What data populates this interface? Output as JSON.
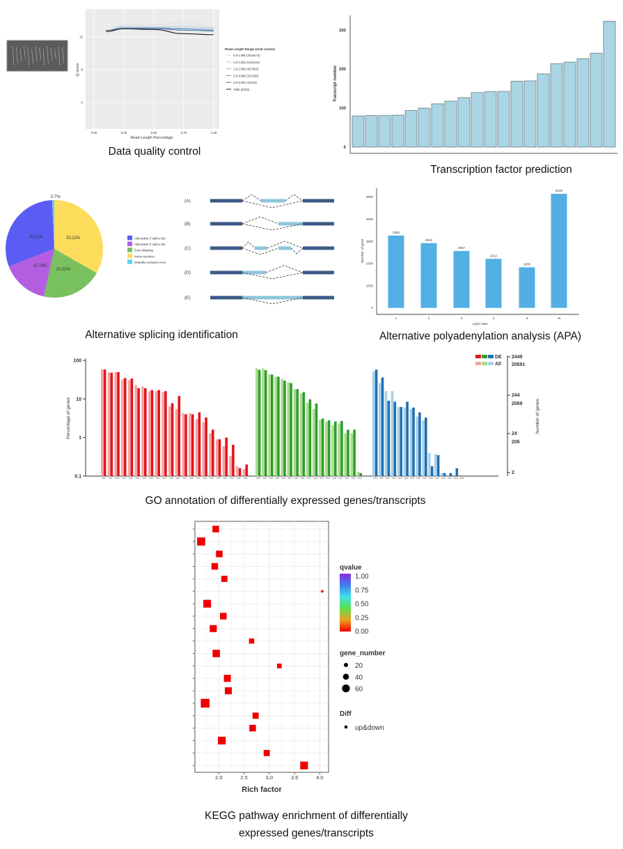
{
  "captions": {
    "qc": "Data quality control",
    "tf": "Transcription factor prediction",
    "as": "Alternative splicing identification",
    "apa": "Alternative polyadenylation analysis (APA)",
    "go": "GO annotation of differentially expressed genes/transcripts",
    "kegg_line1": "KEGG pathway enrichment of differentially",
    "kegg_line2": "expressed genes/transcripts"
  },
  "splicing_diagram": {
    "labels": [
      "(A)",
      "(B)",
      "(C)",
      "(D)",
      "(E)"
    ],
    "colors": {
      "constitutive_exon": "#3b5a86",
      "alternative_exon": "#8ec5dc"
    }
  },
  "chart_data": [
    {
      "id": "qc",
      "type": "line",
      "xlabel": "Read Length Percentage",
      "ylabel": "Q score",
      "xticks": [
        "0.00",
        "0.25",
        "0.50",
        "0.75",
        "1.00"
      ],
      "yticks": [
        "12",
        "9",
        "6"
      ],
      "xlim": [
        -0.05,
        1.05
      ],
      "ylim": [
        3.5,
        14.5
      ],
      "grid": true,
      "legend_title": "Read Length Range (read counts)",
      "legend_position": "right",
      "x": [
        0.1,
        0.25,
        0.5,
        0.75,
        1.0
      ],
      "series": [
        {
          "name": "0.5-1.0kb (2516473)",
          "color": "#d4dde6",
          "values": [
            12.6,
            13.1,
            13.1,
            13.35,
            12.9
          ]
        },
        {
          "name": "1.0-1.5kb (1130114)",
          "color": "#b8cadb",
          "values": [
            12.6,
            12.95,
            12.9,
            13.0,
            12.8
          ]
        },
        {
          "name": "1.5-2.0kb (457963)",
          "color": "#8fb1d1",
          "values": [
            12.6,
            12.85,
            12.85,
            12.8,
            12.7
          ]
        },
        {
          "name": "2.0-3.0kb (207290)",
          "color": "#5f8fbf",
          "values": [
            12.6,
            12.8,
            12.8,
            12.72,
            12.6
          ]
        },
        {
          "name": "3.0-5.0kb (40104)",
          "color": "#3a6a9c",
          "values": [
            12.6,
            12.75,
            12.78,
            12.62,
            12.55
          ]
        },
        {
          "name": ">5kb (2023)",
          "color": "#1a1a1a",
          "values": [
            12.5,
            12.75,
            12.68,
            12.3,
            12.2
          ]
        }
      ]
    },
    {
      "id": "tf",
      "type": "bar",
      "ylabel": "Transcript number",
      "yticks": [
        "0",
        "100",
        "200",
        "300"
      ],
      "ylim": [
        0,
        330
      ],
      "color": "#a9d5e4",
      "values": [
        80,
        81,
        81,
        82,
        94,
        100,
        111,
        118,
        127,
        140,
        142,
        143,
        169,
        170,
        188,
        214,
        218,
        227,
        241,
        323
      ]
    },
    {
      "id": "as",
      "type": "pie",
      "outside_label": "0.7%",
      "slices": [
        {
          "label": "Intron retention",
          "value": 33.22,
          "text": "33.22%",
          "color": "#fddc5c"
        },
        {
          "label": "Exon skipping",
          "value": 20.22,
          "text": "20.22%",
          "color": "#79c15f"
        },
        {
          "label": "Alternative 5' splice site",
          "value": 15.73,
          "text": "15.73%",
          "color": "#b35ee0"
        },
        {
          "label": "Alternative 3' splice site",
          "value": 30.13,
          "text": "30.13%",
          "color": "#5b5cf4"
        },
        {
          "label": "Mutually exclusive exon",
          "value": 0.7,
          "text": "",
          "color": "#5fd3f3"
        }
      ],
      "legend_order": [
        "Alternative 3' splice site",
        "Alternative 5' splice site",
        "Exon skipping",
        "Intron retention",
        "Mutually exclusive exon"
      ],
      "legend_position": "right"
    },
    {
      "id": "apa",
      "type": "bar",
      "xlabel": "polyA sites",
      "ylabel": "Number of gene",
      "categories": [
        "1",
        "2",
        "3",
        "4",
        "5",
        ">5"
      ],
      "values": [
        3263,
        2922,
        2567,
        2212,
        1830,
        5146
      ],
      "value_labels": [
        "3263",
        "2922",
        "2567",
        "2212",
        "1830",
        "5146"
      ],
      "yticks": [
        "0",
        "1000",
        "2000",
        "3000",
        "4000",
        "5000"
      ],
      "ylim": [
        0,
        5400
      ],
      "color": "#52afe4"
    },
    {
      "id": "go",
      "type": "bar",
      "ylabel": "Percentage of genes",
      "y2label": "Number of genes",
      "yscale": "log",
      "ylim": [
        0.1,
        100
      ],
      "yticks": [
        "100",
        "10",
        "1",
        "0.1"
      ],
      "y2ticks_de": [
        "2449",
        "244",
        "24",
        "2"
      ],
      "y2ticks_all": [
        "20691",
        "2069",
        "206"
      ],
      "legend": {
        "de": "DE",
        "all": "All",
        "position": "top-right"
      },
      "groups": [
        {
          "color_de": "#e0161c",
          "color_all": "#f7a3a3",
          "de": [
            58,
            48,
            50,
            35,
            34,
            19,
            19,
            17,
            17,
            16,
            7.8,
            12,
            4,
            4,
            4.5,
            3.3,
            1.6,
            0.9,
            1.0,
            0.65,
            0.16,
            0.2
          ],
          "all": [
            58,
            49,
            50,
            32,
            31,
            23,
            21,
            16,
            16,
            15,
            6.5,
            5.5,
            4.3,
            4.3,
            3,
            2.5,
            1.3,
            0.9,
            0.6,
            0.33,
            0.18,
            0.15
          ]
        },
        {
          "color_de": "#2f9e2b",
          "color_all": "#a8dc8e",
          "de": [
            57,
            56,
            43,
            38,
            30,
            26,
            18,
            15,
            9.8,
            7.6,
            3.1,
            2.8,
            2.6,
            2.7,
            1.6,
            1.6,
            0.12
          ],
          "all": [
            62,
            62,
            44,
            38,
            33,
            27,
            18,
            14,
            8,
            5.5,
            2.9,
            2.6,
            2.1,
            2.3,
            1.3,
            1.3,
            0.13
          ]
        },
        {
          "color_de": "#1e6fb3",
          "color_all": "#a9d0ea",
          "de": [
            58,
            36,
            9,
            8.5,
            6.2,
            8.5,
            6,
            4.5,
            3.3,
            0.18,
            0.35,
            0.12,
            0.12,
            0.16,
            0.1
          ],
          "all": [
            52,
            26,
            16,
            16,
            6.2,
            6,
            5.5,
            3.5,
            2.8,
            0.4,
            0.38,
            0.12,
            0.1,
            0.1,
            0.1
          ]
        }
      ]
    },
    {
      "id": "kegg",
      "type": "scatter",
      "xlabel": "Rich factor",
      "xticks": [
        "2.0",
        "2.5",
        "3.0",
        "3.5",
        "4.0"
      ],
      "xlim": [
        1.58,
        4.1
      ],
      "grid": true,
      "color": "#ee0000",
      "points": [
        {
          "x": 1.94,
          "gene_number": 40
        },
        {
          "x": 1.65,
          "gene_number": 60
        },
        {
          "x": 2.01,
          "gene_number": 40
        },
        {
          "x": 1.92,
          "gene_number": 40
        },
        {
          "x": 2.11,
          "gene_number": 35
        },
        {
          "x": 4.05,
          "gene_number": 5
        },
        {
          "x": 1.77,
          "gene_number": 55
        },
        {
          "x": 2.09,
          "gene_number": 40
        },
        {
          "x": 1.89,
          "gene_number": 45
        },
        {
          "x": 2.65,
          "gene_number": 25
        },
        {
          "x": 1.95,
          "gene_number": 50
        },
        {
          "x": 3.2,
          "gene_number": 20
        },
        {
          "x": 2.17,
          "gene_number": 45
        },
        {
          "x": 2.19,
          "gene_number": 45
        },
        {
          "x": 1.73,
          "gene_number": 70
        },
        {
          "x": 2.73,
          "gene_number": 35
        },
        {
          "x": 2.67,
          "gene_number": 40
        },
        {
          "x": 2.06,
          "gene_number": 55
        },
        {
          "x": 2.95,
          "gene_number": 35
        },
        {
          "x": 3.69,
          "gene_number": 55
        }
      ],
      "legend": {
        "qvalue_title": "qvalue",
        "qvalue_ticks": [
          "1.00",
          "0.75",
          "0.50",
          "0.25",
          "0.00"
        ],
        "qvalue_colors": [
          "#8a2be2",
          "#3f7df0",
          "#3fe0e8",
          "#5ee04a",
          "#f0a020",
          "#ee0000"
        ],
        "size_title": "gene_number",
        "size_ticks": [
          "20",
          "40",
          "60"
        ],
        "diff_title": "Diff",
        "diff_label": "up&down"
      }
    }
  ]
}
